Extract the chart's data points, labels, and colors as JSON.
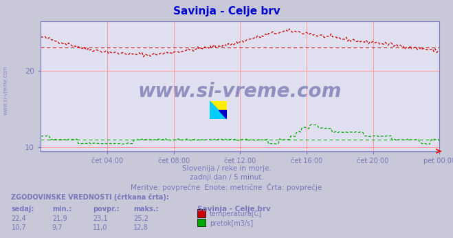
{
  "title": "Savinja - Celje brv",
  "title_color": "#0000cc",
  "bg_color": "#c8c8d8",
  "plot_bg_color": "#e0e0f0",
  "watermark_text": "www.si-vreme.com",
  "watermark_color": "#8888bb",
  "subtitle_lines": [
    "Slovenija / reke in morje.",
    "zadnji dan / 5 minut.",
    "Meritve: povprečne  Enote: metrične  Črta: povprečje"
  ],
  "xlabel_ticks": [
    "čet 04:00",
    "čet 08:00",
    "čet 12:00",
    "čet 16:00",
    "čet 20:00",
    "pet 00:00"
  ],
  "ylim": [
    9.5,
    26.5
  ],
  "yticks": [
    10,
    20
  ],
  "grid_color": "#ff9999",
  "axis_color": "#7777bb",
  "temp_color": "#cc0000",
  "flow_color": "#00aa00",
  "avg_temp": 23.1,
  "avg_flow": 11.0,
  "legend_title": "Savinja - Celje brv",
  "legend_items": [
    {
      "label": "temperatura[C]",
      "color": "#cc0000"
    },
    {
      "label": "pretok[m3/s]",
      "color": "#00aa00"
    }
  ],
  "table_header": "ZGODOVINSKE VREDNOSTI (črtkana črta):",
  "table_cols": [
    "sedaj:",
    "min.:",
    "povpr.:",
    "maks.:"
  ],
  "table_data": [
    [
      "22,4",
      "21,9",
      "23,1",
      "25,2"
    ],
    [
      "10,7",
      "9,7",
      "11,0",
      "12,8"
    ]
  ],
  "n_points": 288
}
